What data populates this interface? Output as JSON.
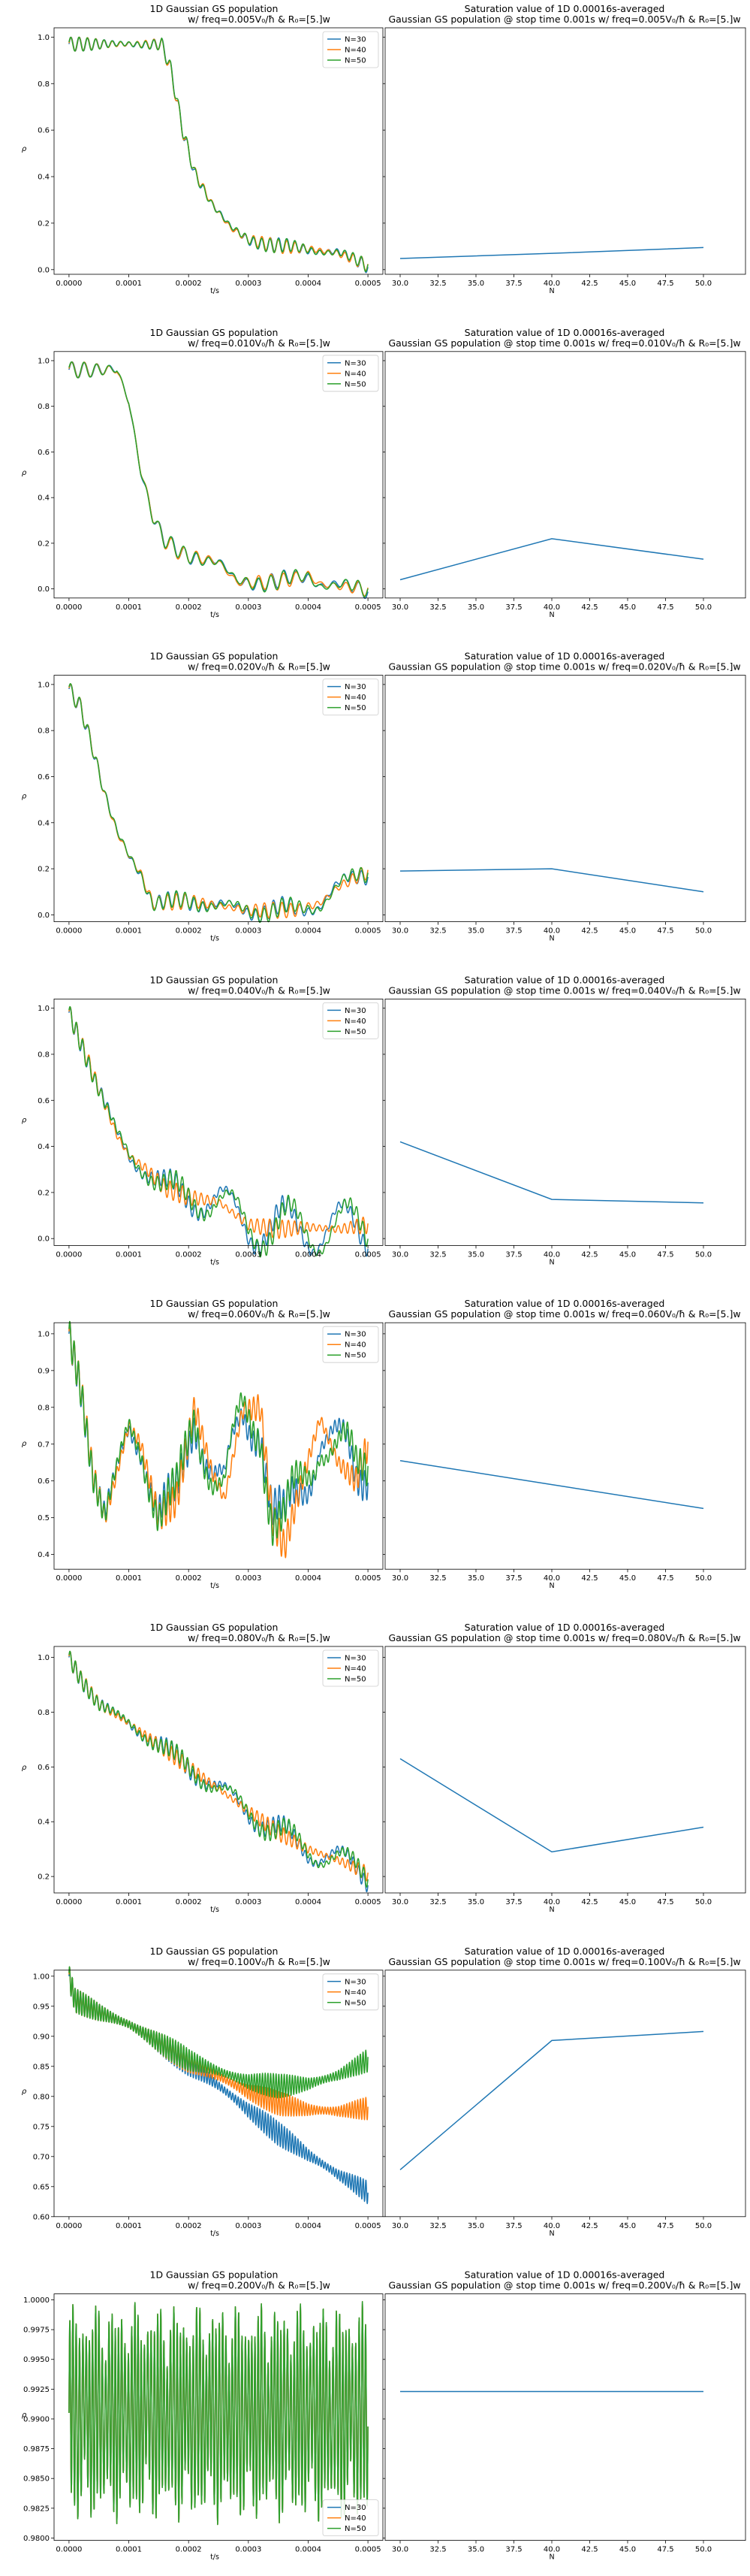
{
  "colors": {
    "N30": "#1f77b4",
    "N40": "#ff7f0e",
    "N50": "#2ca02c"
  },
  "chart_data": [
    {
      "type": "line",
      "title_left": [
        "1D Gaussian GS population",
        "w/ freq=0.005V₀/ħ & R₀=[5.]w"
      ],
      "title_right": [
        "Saturation value of 1D 0.00016s-averaged",
        "Gaussian GS population @ stop time 0.001s w/ freq=0.005V₀/ħ & R₀=[5.]w"
      ],
      "xlabel": "t/s",
      "ylabel": "ρ",
      "xlabel_right": "N",
      "xlim": [
        -2.5e-05,
        0.000525
      ],
      "ylim": [
        -0.02,
        1.04
      ],
      "yticks": [
        "0.0",
        "0.2",
        "0.4",
        "0.6",
        "0.8",
        "1.0"
      ],
      "xticks": [
        "0.0000",
        "0.0001",
        "0.0002",
        "0.0003",
        "0.0004",
        "0.0005"
      ],
      "legend": [
        "N=30",
        "N=40",
        "N=50"
      ],
      "legend_loc": "upper right",
      "curve": {
        "osc_amp": 0.03,
        "osc_n": 36,
        "spread": 0.004,
        "pts": [
          [
            0,
            0.97
          ],
          [
            0.000155,
            0.97
          ],
          [
            0.00017,
            0.86
          ],
          [
            0.00019,
            0.6
          ],
          [
            0.00021,
            0.42
          ],
          [
            0.00024,
            0.28
          ],
          [
            0.00027,
            0.18
          ],
          [
            0.0003,
            0.13
          ],
          [
            0.00035,
            0.1
          ],
          [
            0.0004,
            0.09
          ],
          [
            0.00045,
            0.07
          ],
          [
            0.0005,
            0.02
          ]
        ]
      },
      "saturation": {
        "N": [
          30,
          40,
          50
        ],
        "values": [
          0.048,
          0.07,
          0.095
        ]
      },
      "right_ylim": [
        -0.02,
        1.04
      ]
    },
    {
      "type": "line",
      "title_left": [
        "1D Gaussian GS population",
        "w/ freq=0.010V₀/ħ & R₀=[5.]w"
      ],
      "title_right": [
        "Saturation value of 1D 0.00016s-averaged",
        "Gaussian GS population @ stop time 0.001s w/ freq=0.010V₀/ħ & R₀=[5.]w"
      ],
      "xlabel": "t/s",
      "ylabel": "ρ",
      "xlabel_right": "N",
      "xlim": [
        -2.5e-05,
        0.000525
      ],
      "ylim": [
        -0.04,
        1.04
      ],
      "yticks": [
        "0.0",
        "0.2",
        "0.4",
        "0.6",
        "0.8",
        "1.0"
      ],
      "xticks": [
        "0.0000",
        "0.0001",
        "0.0002",
        "0.0003",
        "0.0004",
        "0.0005"
      ],
      "legend": [
        "N=30",
        "N=40",
        "N=50"
      ],
      "legend_loc": "upper right",
      "curve": {
        "osc_amp": 0.035,
        "osc_n": 24,
        "spread": 0.006,
        "pts": [
          [
            0,
            0.96
          ],
          [
            8e-05,
            0.96
          ],
          [
            0.0001,
            0.82
          ],
          [
            0.00012,
            0.52
          ],
          [
            0.00014,
            0.32
          ],
          [
            0.00016,
            0.21
          ],
          [
            0.00019,
            0.15
          ],
          [
            0.00025,
            0.12
          ],
          [
            0.00028,
            0.03
          ],
          [
            0.00035,
            0.03
          ],
          [
            0.0004,
            0.06
          ],
          [
            0.00042,
            0.02
          ],
          [
            0.0005,
            0.0
          ]
        ]
      },
      "saturation": {
        "N": [
          30,
          40,
          50
        ],
        "values": [
          0.04,
          0.22,
          0.13
        ]
      },
      "right_ylim": [
        -0.04,
        1.04
      ]
    },
    {
      "type": "line",
      "title_left": [
        "1D Gaussian GS population",
        "w/ freq=0.020V₀/ħ & R₀=[5.]w"
      ],
      "title_right": [
        "Saturation value of 1D 0.00016s-averaged",
        "Gaussian GS population @ stop time 0.001s w/ freq=0.020V₀/ħ & R₀=[5.]w"
      ],
      "xlabel": "t/s",
      "ylabel": "ρ",
      "xlabel_right": "N",
      "xlim": [
        -2.5e-05,
        0.000525
      ],
      "ylim": [
        -0.03,
        1.04
      ],
      "yticks": [
        "0.0",
        "0.2",
        "0.4",
        "0.6",
        "0.8",
        "1.0"
      ],
      "xticks": [
        "0.0000",
        "0.0001",
        "0.0002",
        "0.0003",
        "0.0004",
        "0.0005"
      ],
      "legend": [
        "N=30",
        "N=40",
        "N=50"
      ],
      "legend_loc": "upper right",
      "curve": {
        "osc_amp": 0.035,
        "osc_n": 34,
        "spread": 0.012,
        "pts": [
          [
            0,
            0.98
          ],
          [
            2e-05,
            0.9
          ],
          [
            4e-05,
            0.72
          ],
          [
            6e-05,
            0.52
          ],
          [
            8e-05,
            0.36
          ],
          [
            0.0001,
            0.26
          ],
          [
            0.00012,
            0.18
          ],
          [
            0.00014,
            0.05
          ],
          [
            0.0002,
            0.06
          ],
          [
            0.00025,
            0.04
          ],
          [
            0.0003,
            0.02
          ],
          [
            0.00038,
            0.02
          ],
          [
            0.00042,
            0.05
          ],
          [
            0.00045,
            0.12
          ],
          [
            0.0005,
            0.19
          ]
        ]
      },
      "saturation": {
        "N": [
          30,
          40,
          50
        ],
        "values": [
          0.19,
          0.2,
          0.1
        ]
      },
      "right_ylim": [
        -0.03,
        1.04
      ]
    },
    {
      "type": "line",
      "title_left": [
        "1D Gaussian GS population",
        "w/ freq=0.040V₀/ħ & R₀=[5.]w"
      ],
      "title_right": [
        "Saturation value of 1D 0.00016s-averaged",
        "Gaussian GS population @ stop time 0.001s w/ freq=0.040V₀/ħ & R₀=[5.]w"
      ],
      "xlabel": "t/s",
      "ylabel": "ρ",
      "xlabel_right": "N",
      "xlim": [
        -2.5e-05,
        0.000525
      ],
      "ylim": [
        -0.03,
        1.04
      ],
      "yticks": [
        "0.0",
        "0.2",
        "0.4",
        "0.6",
        "0.8",
        "1.0"
      ],
      "xticks": [
        "0.0000",
        "0.0001",
        "0.0002",
        "0.0003",
        "0.0004",
        "0.0005"
      ],
      "legend": [
        "N=30",
        "N=40",
        "N=50"
      ],
      "legend_loc": "upper right",
      "curve": {
        "osc_amp": 0.04,
        "osc_n": 48,
        "spread": 0.05,
        "pts": [
          [
            0,
            0.98
          ],
          [
            2e-05,
            0.85
          ],
          [
            5e-05,
            0.65
          ],
          [
            8e-05,
            0.45
          ],
          [
            0.0001,
            0.36
          ],
          [
            0.00013,
            0.3
          ],
          [
            0.00016,
            0.22
          ],
          [
            0.0002,
            0.18
          ],
          [
            0.00025,
            0.16
          ],
          [
            0.0003,
            0.06
          ],
          [
            0.00035,
            0.04
          ],
          [
            0.0004,
            0.05
          ],
          [
            0.00045,
            0.04
          ],
          [
            0.0005,
            0.06
          ]
        ]
      },
      "saturation": {
        "N": [
          30,
          40,
          50
        ],
        "values": [
          0.42,
          0.17,
          0.155
        ]
      },
      "right_ylim": [
        -0.03,
        1.04
      ]
    },
    {
      "type": "line",
      "title_left": [
        "1D Gaussian GS population",
        "w/ freq=0.060V₀/ħ & R₀=[5.]w"
      ],
      "title_right": [
        "Saturation value of 1D 0.00016s-averaged",
        "Gaussian GS population @ stop time 0.001s w/ freq=0.060V₀/ħ & R₀=[5.]w"
      ],
      "xlabel": "t/s",
      "ylabel": "ρ",
      "xlabel_right": "N",
      "xlim": [
        -2.5e-05,
        0.000525
      ],
      "ylim": [
        0.36,
        1.03
      ],
      "yticks": [
        "0.4",
        "0.5",
        "0.6",
        "0.7",
        "0.8",
        "0.9",
        "1.0"
      ],
      "xticks": [
        "0.0000",
        "0.0001",
        "0.0002",
        "0.0003",
        "0.0004",
        "0.0005"
      ],
      "legend": [
        "N=30",
        "N=40",
        "N=50"
      ],
      "legend_loc": "upper right",
      "curve": {
        "osc_amp": 0.045,
        "osc_n": 70,
        "spread": 0.05,
        "pts": [
          [
            0,
            1.0
          ],
          [
            2e-05,
            0.85
          ],
          [
            4e-05,
            0.62
          ],
          [
            6e-05,
            0.5
          ],
          [
            8e-05,
            0.62
          ],
          [
            0.0001,
            0.75
          ],
          [
            0.00012,
            0.7
          ],
          [
            0.00015,
            0.5
          ],
          [
            0.00018,
            0.55
          ],
          [
            0.00021,
            0.8
          ],
          [
            0.00024,
            0.62
          ],
          [
            0.00026,
            0.55
          ],
          [
            0.00029,
            0.79
          ],
          [
            0.00032,
            0.8
          ],
          [
            0.00034,
            0.5
          ],
          [
            0.00036,
            0.42
          ],
          [
            0.00039,
            0.6
          ],
          [
            0.00042,
            0.77
          ],
          [
            0.00045,
            0.65
          ],
          [
            0.00048,
            0.6
          ],
          [
            0.0005,
            0.7
          ]
        ]
      },
      "saturation": {
        "N": [
          30,
          40,
          50
        ],
        "values": [
          0.655,
          0.59,
          0.525
        ]
      },
      "right_ylim": [
        0.36,
        1.03
      ]
    },
    {
      "type": "line",
      "title_left": [
        "1D Gaussian GS population",
        "w/ freq=0.080V₀/ħ & R₀=[5.]w"
      ],
      "title_right": [
        "Saturation value of 1D 0.00016s-averaged",
        "Gaussian GS population @ stop time 0.001s w/ freq=0.080V₀/ħ & R₀=[5.]w"
      ],
      "xlabel": "t/s",
      "ylabel": "ρ",
      "xlabel_right": "N",
      "xlim": [
        -2.5e-05,
        0.000525
      ],
      "ylim": [
        0.14,
        1.04
      ],
      "yticks": [
        "0.2",
        "0.4",
        "0.6",
        "0.8",
        "1.0"
      ],
      "xticks": [
        "0.0000",
        "0.0001",
        "0.0002",
        "0.0003",
        "0.0004",
        "0.0005"
      ],
      "legend": [
        "N=30",
        "N=40",
        "N=50"
      ],
      "legend_loc": "upper right",
      "curve": {
        "osc_amp": 0.03,
        "osc_n": 56,
        "spread": 0.02,
        "pts": [
          [
            0,
            1.0
          ],
          [
            2e-05,
            0.92
          ],
          [
            5e-05,
            0.83
          ],
          [
            0.0001,
            0.76
          ],
          [
            0.00015,
            0.68
          ],
          [
            0.0002,
            0.6
          ],
          [
            0.00025,
            0.52
          ],
          [
            0.0003,
            0.44
          ],
          [
            0.00035,
            0.36
          ],
          [
            0.0004,
            0.3
          ],
          [
            0.00045,
            0.26
          ],
          [
            0.0005,
            0.21
          ]
        ]
      },
      "saturation": {
        "N": [
          30,
          40,
          50
        ],
        "values": [
          0.63,
          0.29,
          0.38
        ]
      },
      "right_ylim": [
        0.14,
        1.04
      ]
    },
    {
      "type": "line",
      "title_left": [
        "1D Gaussian GS population",
        "w/ freq=0.100V₀/ħ & R₀=[5.]w"
      ],
      "title_right": [
        "Saturation value of 1D 0.00016s-averaged",
        "Gaussian GS population @ stop time 0.001s w/ freq=0.100V₀/ħ & R₀=[5.]w"
      ],
      "xlabel": "t/s",
      "ylabel": "ρ",
      "xlabel_right": "N",
      "xlim": [
        -2.5e-05,
        0.000525
      ],
      "ylim": [
        0.6,
        1.01
      ],
      "yticks": [
        "0.60",
        "0.65",
        "0.70",
        "0.75",
        "0.80",
        "0.85",
        "0.90",
        "0.95",
        "1.00"
      ],
      "xticks": [
        "0.0000",
        "0.0001",
        "0.0002",
        "0.0003",
        "0.0004",
        "0.0005"
      ],
      "legend": [
        "N=30",
        "N=40",
        "N=50"
      ],
      "legend_loc": "upper right",
      "curve": {
        "osc_amp": 0.02,
        "osc_n": 110,
        "spread": 0.0,
        "pts": [
          [
            0,
            1.0
          ],
          [
            1e-05,
            0.96
          ],
          [
            5e-05,
            0.94
          ],
          [
            0.0001,
            0.92
          ],
          [
            0.00015,
            0.89
          ],
          [
            0.0002,
            0.86
          ],
          [
            0.00025,
            0.84
          ],
          [
            0.0003,
            0.82
          ],
          [
            0.00035,
            0.81
          ],
          [
            0.0004,
            0.81
          ],
          [
            0.00045,
            0.82
          ],
          [
            0.0005,
            0.84
          ]
        ]
      },
      "series_end": {
        "N=30": 0.64,
        "N=40": 0.78,
        "N=50": 0.86
      },
      "saturation": {
        "N": [
          30,
          40,
          50
        ],
        "values": [
          0.678,
          0.893,
          0.908
        ]
      },
      "right_ylim": [
        0.6,
        1.01
      ]
    },
    {
      "type": "line",
      "title_left": [
        "1D Gaussian GS population",
        "w/ freq=0.200V₀/ħ & R₀=[5.]w"
      ],
      "title_right": [
        "Saturation value of 1D 0.00016s-averaged",
        "Gaussian GS population @ stop time 0.001s w/ freq=0.200V₀/ħ & R₀=[5.]w"
      ],
      "xlabel": "t/s",
      "ylabel": "ρ",
      "xlabel_right": "N",
      "xlim": [
        -2.5e-05,
        0.000525
      ],
      "ylim": [
        0.9798,
        1.0005
      ],
      "yticks": [
        "0.9800",
        "0.9825",
        "0.9850",
        "0.9875",
        "0.9900",
        "0.9925",
        "0.9950",
        "0.9975",
        "1.0000"
      ],
      "xticks": [
        "0.0000",
        "0.0001",
        "0.0002",
        "0.0003",
        "0.0004",
        "0.0005"
      ],
      "legend": [
        "N=30",
        "N=40",
        "N=50"
      ],
      "legend_loc": "lower right",
      "curve": {
        "mode": "dense",
        "center": 0.9905,
        "amp": 0.0082,
        "cycles": 92
      },
      "saturation": {
        "N": [
          30,
          40,
          50
        ],
        "values": [
          0.9923,
          0.9923,
          0.9923
        ]
      },
      "right_ylim": [
        0.9798,
        1.0005
      ]
    }
  ],
  "right_xticks": [
    "30.0",
    "32.5",
    "35.0",
    "37.5",
    "40.0",
    "42.5",
    "45.0",
    "47.5",
    "50.0"
  ]
}
